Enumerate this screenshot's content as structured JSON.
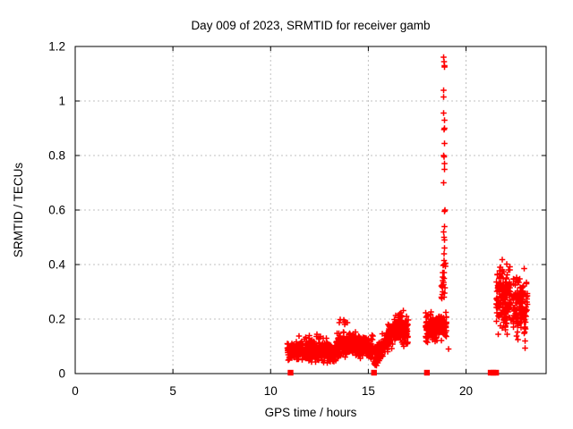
{
  "chart_data": {
    "type": "scatter",
    "title": "Day 009 of 2023, SRMTID for receiver gamb",
    "xlabel": "GPS time / hours",
    "ylabel": "SRMTID / TECUs",
    "xlim": [
      0,
      24.1
    ],
    "ylim": [
      0,
      1.2
    ],
    "xticks": [
      0,
      5,
      10,
      15,
      20
    ],
    "xtick_labels": [
      "0",
      "5",
      "10",
      "15",
      "20"
    ],
    "yticks": [
      0,
      0.2,
      0.4,
      0.6,
      0.8,
      1.0,
      1.2
    ],
    "ytick_labels": [
      "0",
      "0.2",
      "0.4",
      "0.6",
      "0.8",
      "1",
      "1.2"
    ],
    "grid": "dashed gray gridlines at each major tick",
    "grid_color": "#c0c0c0",
    "legend": "none",
    "marker": "plus",
    "marker_color": "#ff0000",
    "baseline_marker": "filled-square",
    "series_description": "Red '+' scatter markers of SRMTID vs GPS time. No data before ~10.9 h. Dense low band (~0.03-0.15 TECU) from 11-15.3 h, rising band 15.3-17 h up to ~0.25, blob 17.9-19 h around 0.1-0.27 with a narrow vertical spike at ~18.9 h reaching 1.16, and a two-column cluster 21.5-23.1 h spanning 0.08-0.45. Red filled squares sit on the x-axis at event times.",
    "clusters_format": "[x_start, x_end, n_points, y_center_start, y_center_end, y_spread_sigma_x2, y_min, y_max]",
    "clusters": [
      [
        10.85,
        13.35,
        430,
        0.085,
        0.078,
        0.035,
        0.035,
        0.145
      ],
      [
        11.3,
        12.8,
        16,
        0.132,
        0.132,
        0.02,
        0.105,
        0.165
      ],
      [
        13.35,
        14.45,
        180,
        0.1,
        0.115,
        0.04,
        0.045,
        0.19
      ],
      [
        13.45,
        13.95,
        7,
        0.19,
        0.19,
        0.018,
        0.165,
        0.215
      ],
      [
        14.45,
        15.25,
        120,
        0.1,
        0.088,
        0.042,
        0.035,
        0.175
      ],
      [
        15.3,
        16.0,
        150,
        0.055,
        0.125,
        0.035,
        0.03,
        0.19
      ],
      [
        16.0,
        16.7,
        160,
        0.13,
        0.19,
        0.042,
        0.07,
        0.26
      ],
      [
        16.6,
        17.05,
        70,
        0.165,
        0.155,
        0.05,
        0.09,
        0.25
      ],
      [
        17.9,
        19.0,
        200,
        0.165,
        0.18,
        0.05,
        0.08,
        0.27
      ],
      [
        18.72,
        18.95,
        14,
        0.3,
        0.42,
        0.055,
        0.27,
        0.46
      ],
      [
        21.55,
        22.3,
        160,
        0.27,
        0.28,
        0.11,
        0.1,
        0.455
      ],
      [
        22.4,
        23.15,
        150,
        0.245,
        0.235,
        0.11,
        0.08,
        0.435
      ]
    ],
    "spike": {
      "x": 18.88,
      "x_jitter": 0.035,
      "y_values": [
        1.16,
        1.145,
        1.13,
        1.125,
        1.04,
        1.015,
        0.955,
        0.93,
        0.9,
        0.895,
        0.845,
        0.8,
        0.795,
        0.77,
        0.75,
        0.7,
        0.6,
        0.595,
        0.54,
        0.52,
        0.5,
        0.49,
        0.46,
        0.44,
        0.415,
        0.4,
        0.37,
        0.35,
        0.335,
        0.315,
        0.295,
        0.28
      ]
    },
    "extra_points": [
      [
        19.1,
        0.09
      ]
    ],
    "baseline_squares_x": [
      11.02,
      15.29,
      18.0,
      21.26,
      21.4,
      21.54
    ]
  }
}
